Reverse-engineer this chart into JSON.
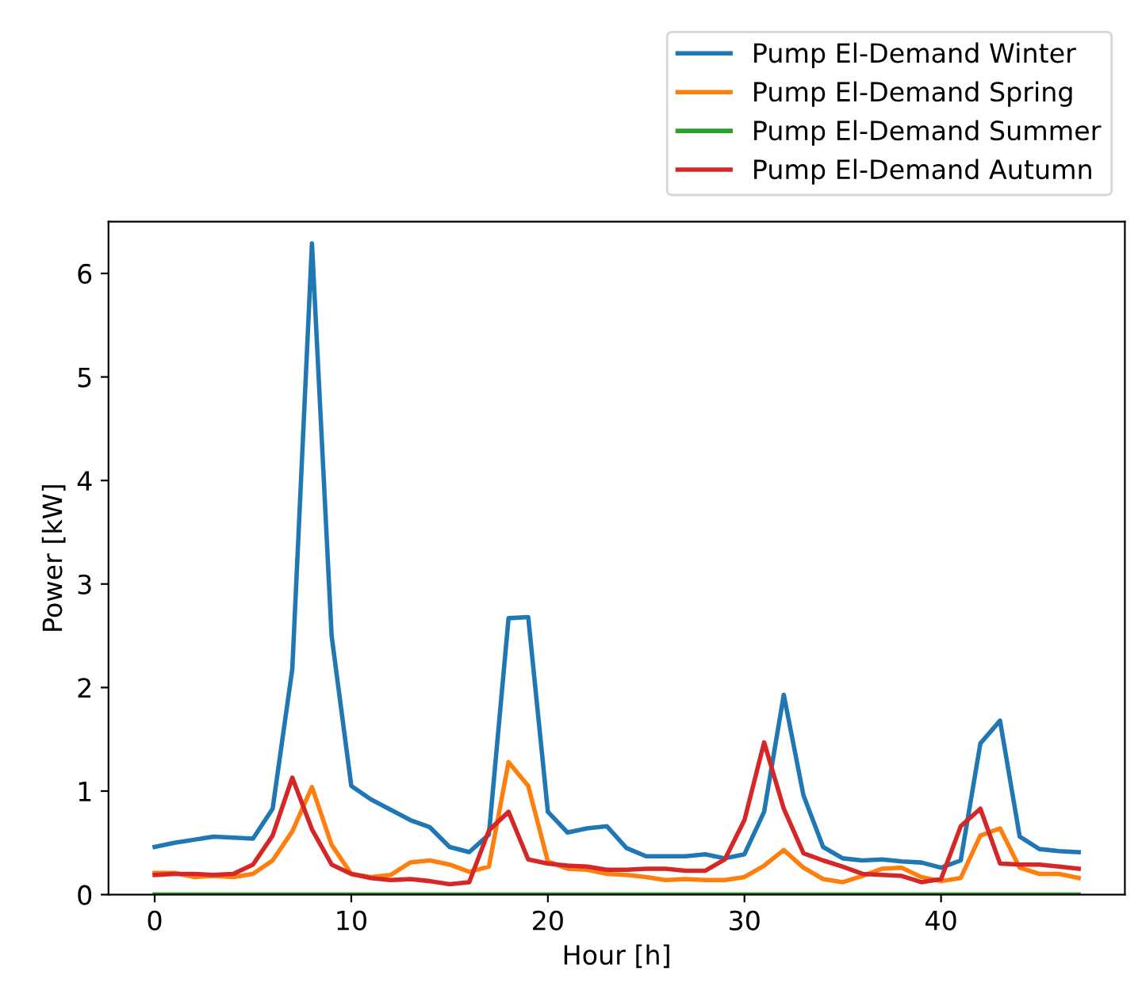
{
  "chart_data": {
    "type": "line",
    "xlabel": "Hour [h]",
    "ylabel": "Power [kW]",
    "x": [
      0,
      1,
      2,
      3,
      4,
      5,
      6,
      7,
      8,
      9,
      10,
      11,
      12,
      13,
      14,
      15,
      16,
      17,
      18,
      19,
      20,
      21,
      22,
      23,
      24,
      25,
      26,
      27,
      28,
      29,
      30,
      31,
      32,
      33,
      34,
      35,
      36,
      37,
      38,
      39,
      40,
      41,
      42,
      43,
      44,
      45,
      46,
      47
    ],
    "xlim": [
      -2.35,
      49.35
    ],
    "xticks": [
      0,
      10,
      20,
      30,
      40
    ],
    "ylim": [
      0,
      6.5
    ],
    "yticks": [
      0,
      1,
      2,
      3,
      4,
      5,
      6
    ],
    "grid": false,
    "legend": "top right",
    "marker": "none",
    "line_style": "solid",
    "series": [
      {
        "name": "Pump El-Demand Winter",
        "color": "#1f77b4",
        "values": [
          0.46,
          0.5,
          0.53,
          0.56,
          0.55,
          0.54,
          0.83,
          2.18,
          6.29,
          2.5,
          1.05,
          0.92,
          0.82,
          0.72,
          0.65,
          0.46,
          0.41,
          0.58,
          2.67,
          2.68,
          0.8,
          0.6,
          0.64,
          0.66,
          0.45,
          0.37,
          0.37,
          0.37,
          0.39,
          0.35,
          0.39,
          0.8,
          1.93,
          0.96,
          0.46,
          0.35,
          0.33,
          0.34,
          0.32,
          0.31,
          0.26,
          0.33,
          1.46,
          1.68,
          0.56,
          0.44,
          0.42,
          0.41
        ]
      },
      {
        "name": "Pump El-Demand Spring",
        "color": "#ff7f0e",
        "values": [
          0.21,
          0.21,
          0.17,
          0.18,
          0.17,
          0.2,
          0.33,
          0.61,
          1.04,
          0.48,
          0.2,
          0.17,
          0.19,
          0.31,
          0.33,
          0.29,
          0.22,
          0.27,
          1.28,
          1.05,
          0.32,
          0.25,
          0.24,
          0.2,
          0.19,
          0.17,
          0.14,
          0.15,
          0.14,
          0.14,
          0.17,
          0.28,
          0.43,
          0.26,
          0.15,
          0.12,
          0.18,
          0.25,
          0.26,
          0.17,
          0.13,
          0.16,
          0.57,
          0.64,
          0.26,
          0.2,
          0.2,
          0.16
        ]
      },
      {
        "name": "Pump El-Demand Summer",
        "color": "#2ca02c",
        "values": [
          0,
          0,
          0,
          0,
          0,
          0,
          0,
          0,
          0,
          0,
          0,
          0,
          0,
          0,
          0,
          0,
          0,
          0,
          0,
          0,
          0,
          0,
          0,
          0,
          0,
          0,
          0,
          0,
          0,
          0,
          0,
          0,
          0,
          0,
          0,
          0,
          0,
          0,
          0,
          0,
          0,
          0,
          0,
          0,
          0,
          0,
          0,
          0
        ]
      },
      {
        "name": "Pump El-Demand Autumn",
        "color": "#d62728",
        "values": [
          0.19,
          0.2,
          0.2,
          0.19,
          0.2,
          0.29,
          0.57,
          1.13,
          0.63,
          0.29,
          0.2,
          0.16,
          0.14,
          0.15,
          0.13,
          0.1,
          0.12,
          0.62,
          0.8,
          0.34,
          0.3,
          0.28,
          0.27,
          0.24,
          0.24,
          0.25,
          0.25,
          0.23,
          0.23,
          0.34,
          0.72,
          1.47,
          0.83,
          0.4,
          0.33,
          0.27,
          0.2,
          0.19,
          0.18,
          0.12,
          0.15,
          0.66,
          0.83,
          0.3,
          0.29,
          0.29,
          0.27,
          0.25
        ]
      }
    ]
  }
}
